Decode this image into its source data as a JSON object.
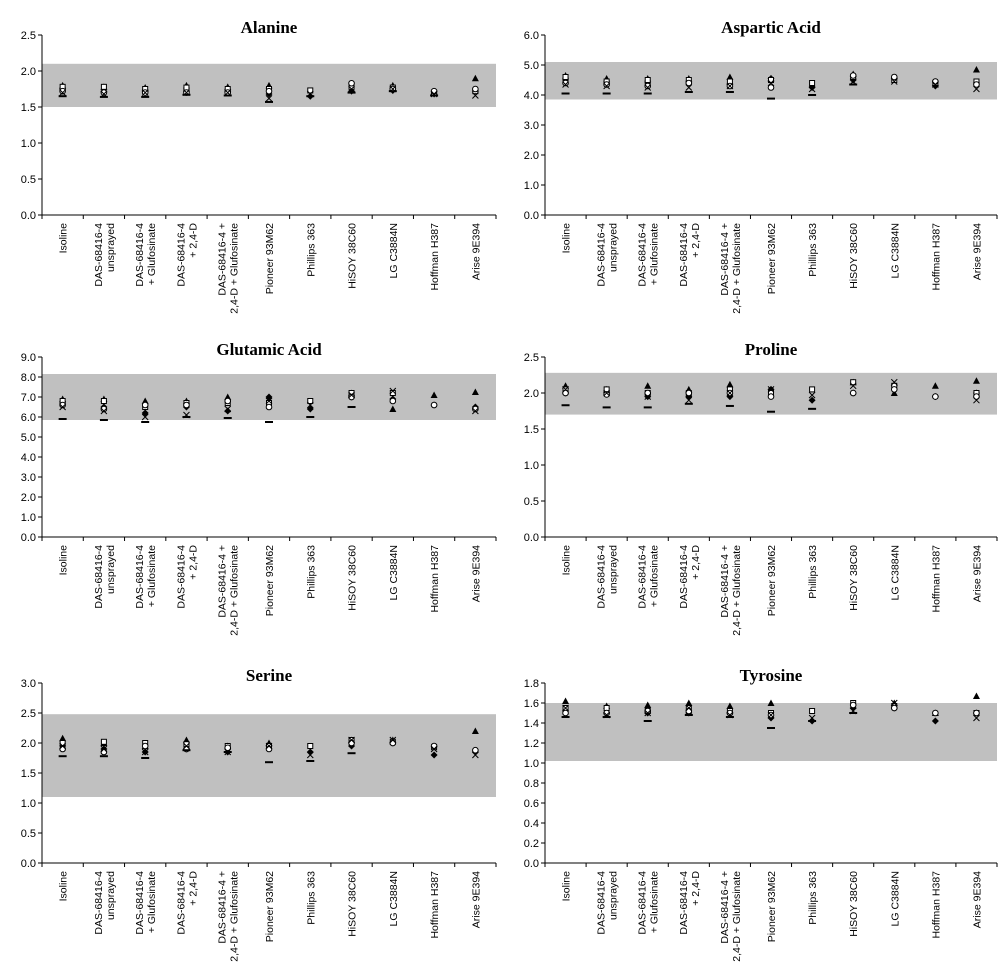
{
  "chart_data": [
    {
      "type": "scatter",
      "title": "Alanine",
      "categories": [
        [
          "Isoline"
        ],
        [
          "DAS-68416-4",
          "unsprayed"
        ],
        [
          "DAS-68416-4",
          "+ Glufosinate"
        ],
        [
          "DAS-68416-4",
          "+ 2,4-D"
        ],
        [
          "DAS-68416-4 +",
          "2,4-D + Glufosinate"
        ],
        [
          "Pioneer 93M62"
        ],
        [
          "Phillips 363"
        ],
        [
          "HiSOY 38C60"
        ],
        [
          "LG C3884N"
        ],
        [
          "Hoffman H387"
        ],
        [
          "Arise 9E394"
        ]
      ],
      "ylim": [
        0,
        2.5
      ],
      "yticks": [
        {
          "value": 0,
          "label": "0.0"
        },
        {
          "value": 0.5,
          "label": "0.5"
        },
        {
          "value": 1,
          "label": "1.0"
        },
        {
          "value": 1.5,
          "label": "1.5"
        },
        {
          "value": 2,
          "label": "2.0"
        },
        {
          "value": 2.5,
          "label": "2.5"
        }
      ],
      "band": [
        1.5,
        2.1
      ],
      "band_color": "#c0c0c0",
      "series": [
        {
          "marker": "diamond",
          "values": [
            1.75,
            1.72,
            1.72,
            1.72,
            1.72,
            1.68,
            1.65,
            1.72,
            1.73,
            1.68,
            1.72
          ]
        },
        {
          "marker": "triangle",
          "values": [
            1.8,
            1.78,
            1.77,
            1.8,
            1.78,
            1.8,
            null,
            null,
            1.8,
            null,
            1.9
          ]
        },
        {
          "marker": "square",
          "values": [
            1.78,
            1.78,
            1.75,
            1.77,
            1.75,
            1.75,
            1.73,
            1.78,
            1.77,
            1.7,
            1.72
          ]
        },
        {
          "marker": "circle",
          "values": [
            1.72,
            1.7,
            1.7,
            1.7,
            1.7,
            1.72,
            null,
            1.83,
            1.75,
            1.72,
            1.75
          ]
        },
        {
          "marker": "cross",
          "values": [
            1.7,
            1.68,
            1.7,
            1.7,
            1.7,
            1.62,
            1.68,
            1.75,
            1.75,
            1.68,
            1.66
          ]
        },
        {
          "marker": "dash",
          "values": [
            1.65,
            1.64,
            1.64,
            1.67,
            1.66,
            1.57,
            1.65,
            1.7,
            1.72,
            1.66,
            null
          ]
        }
      ]
    },
    {
      "type": "scatter",
      "title": "Aspartic Acid",
      "categories": [
        [
          "Isoline"
        ],
        [
          "DAS-68416-4",
          "unsprayed"
        ],
        [
          "DAS-68416-4",
          "+ Glufosinate"
        ],
        [
          "DAS-68416-4",
          "+ 2,4-D"
        ],
        [
          "DAS-68416-4 +",
          "2,4-D + Glufosinate"
        ],
        [
          "Pioneer 93M62"
        ],
        [
          "Phillips 363"
        ],
        [
          "HiSOY 38C60"
        ],
        [
          "LG C3884N"
        ],
        [
          "Hoffman H387"
        ],
        [
          "Arise 9E394"
        ]
      ],
      "ylim": [
        0,
        6
      ],
      "yticks": [
        {
          "value": 0,
          "label": "0.0"
        },
        {
          "value": 1,
          "label": "1.0"
        },
        {
          "value": 2,
          "label": "2.0"
        },
        {
          "value": 3,
          "label": "3.0"
        },
        {
          "value": 4,
          "label": "4.0"
        },
        {
          "value": 5,
          "label": "5.0"
        },
        {
          "value": 6,
          "label": "6.0"
        }
      ],
      "band": [
        3.85,
        5.1
      ],
      "band_color": "#c0c0c0",
      "series": [
        {
          "marker": "diamond",
          "values": [
            4.5,
            4.4,
            4.4,
            4.4,
            4.35,
            4.55,
            4.25,
            4.5,
            4.55,
            4.3,
            4.4
          ]
        },
        {
          "marker": "triangle",
          "values": [
            4.65,
            4.55,
            4.55,
            4.55,
            4.6,
            4.55,
            null,
            4.7,
            null,
            4.4,
            4.85
          ]
        },
        {
          "marker": "square",
          "values": [
            4.6,
            4.45,
            4.5,
            4.5,
            4.45,
            4.5,
            4.4,
            4.6,
            4.5,
            4.4,
            4.45
          ]
        },
        {
          "marker": "circle",
          "values": [
            4.4,
            4.35,
            4.3,
            4.4,
            4.3,
            4.25,
            null,
            4.65,
            4.6,
            4.45,
            4.35
          ]
        },
        {
          "marker": "cross",
          "values": [
            4.35,
            4.3,
            4.25,
            4.25,
            4.3,
            4.4,
            4.2,
            4.45,
            4.45,
            4.35,
            4.2
          ]
        },
        {
          "marker": "dash",
          "values": [
            4.05,
            4.05,
            4.05,
            4.1,
            4.1,
            3.88,
            4.0,
            4.35,
            null,
            null,
            null
          ]
        }
      ]
    },
    {
      "type": "scatter",
      "title": "Glutamic Acid",
      "categories": [
        [
          "Isoline"
        ],
        [
          "DAS-68416-4",
          "unsprayed"
        ],
        [
          "DAS-68416-4",
          "+ Glufosinate"
        ],
        [
          "DAS-68416-4",
          "+ 2,4-D"
        ],
        [
          "DAS-68416-4 +",
          "2,4-D + Glufosinate"
        ],
        [
          "Pioneer 93M62"
        ],
        [
          "Phillips 363"
        ],
        [
          "HiSOY 38C60"
        ],
        [
          "LG C3884N"
        ],
        [
          "Hoffman H387"
        ],
        [
          "Arise 9E394"
        ]
      ],
      "ylim": [
        0,
        9
      ],
      "yticks": [
        {
          "value": 0,
          "label": "0.0"
        },
        {
          "value": 1,
          "label": "1.0"
        },
        {
          "value": 2,
          "label": "2.0"
        },
        {
          "value": 3,
          "label": "3.0"
        },
        {
          "value": 4,
          "label": "4.0"
        },
        {
          "value": 5,
          "label": "5.0"
        },
        {
          "value": 6,
          "label": "6.0"
        },
        {
          "value": 7,
          "label": "7.0"
        },
        {
          "value": 8,
          "label": "8.0"
        },
        {
          "value": 9,
          "label": "9.0"
        }
      ],
      "band": [
        5.85,
        8.15
      ],
      "band_color": "#c0c0c0",
      "series": [
        {
          "marker": "diamond",
          "values": [
            6.7,
            6.5,
            6.2,
            6.5,
            6.3,
            7.0,
            6.4,
            7.0,
            6.9,
            6.6,
            6.5
          ]
        },
        {
          "marker": "triangle",
          "values": [
            6.9,
            6.9,
            6.8,
            6.8,
            7.0,
            null,
            null,
            7.2,
            6.4,
            7.1,
            7.25
          ]
        },
        {
          "marker": "square",
          "values": [
            6.8,
            6.8,
            6.5,
            6.7,
            6.7,
            6.7,
            6.8,
            7.2,
            7.2,
            null,
            null
          ]
        },
        {
          "marker": "circle",
          "values": [
            6.6,
            6.4,
            6.6,
            6.6,
            6.8,
            6.5,
            null,
            7.0,
            6.8,
            6.6,
            6.4
          ]
        },
        {
          "marker": "cross",
          "values": [
            6.5,
            6.3,
            6.0,
            6.1,
            6.4,
            6.8,
            6.6,
            7.1,
            7.3,
            null,
            6.3
          ]
        },
        {
          "marker": "dash",
          "values": [
            5.9,
            5.85,
            5.75,
            6.0,
            5.95,
            5.75,
            6.0,
            6.5,
            null,
            null,
            null
          ]
        }
      ]
    },
    {
      "type": "scatter",
      "title": "Proline",
      "categories": [
        [
          "Isoline"
        ],
        [
          "DAS-68416-4",
          "unsprayed"
        ],
        [
          "DAS-68416-4",
          "+ Glufosinate"
        ],
        [
          "DAS-68416-4",
          "+ 2,4-D"
        ],
        [
          "DAS-68416-4 +",
          "2,4-D + Glufosinate"
        ],
        [
          "Pioneer 93M62"
        ],
        [
          "Phillips 363"
        ],
        [
          "HiSOY 38C60"
        ],
        [
          "LG C3884N"
        ],
        [
          "Hoffman H387"
        ],
        [
          "Arise 9E394"
        ]
      ],
      "ylim": [
        0,
        2.5
      ],
      "yticks": [
        {
          "value": 0,
          "label": "0.0"
        },
        {
          "value": 0.5,
          "label": "0.5"
        },
        {
          "value": 1,
          "label": "1.0"
        },
        {
          "value": 1.5,
          "label": "1.5"
        },
        {
          "value": 2,
          "label": "2.0"
        },
        {
          "value": 2.5,
          "label": "2.5"
        }
      ],
      "band": [
        1.7,
        2.28
      ],
      "band_color": "#c0c0c0",
      "series": [
        {
          "marker": "diamond",
          "values": [
            2.0,
            2.0,
            1.95,
            1.95,
            1.95,
            2.05,
            1.9,
            2.0,
            2.1,
            1.95,
            2.0
          ]
        },
        {
          "marker": "triangle",
          "values": [
            2.1,
            2.05,
            2.1,
            2.05,
            2.12,
            null,
            null,
            2.15,
            2.0,
            2.1,
            2.17
          ]
        },
        {
          "marker": "square",
          "values": [
            2.05,
            2.05,
            2.0,
            2.0,
            2.05,
            2.0,
            2.05,
            2.15,
            2.1,
            null,
            2.0
          ]
        },
        {
          "marker": "circle",
          "values": [
            2.0,
            1.98,
            2.0,
            2.0,
            2.0,
            1.95,
            null,
            2.0,
            2.05,
            1.95,
            1.95
          ]
        },
        {
          "marker": "cross",
          "values": [
            2.05,
            2.0,
            1.95,
            1.9,
            2.0,
            2.05,
            1.97,
            2.1,
            2.15,
            null,
            1.9
          ]
        },
        {
          "marker": "dash",
          "values": [
            1.83,
            1.8,
            1.8,
            1.85,
            1.82,
            1.74,
            1.78,
            null,
            null,
            null,
            null
          ]
        }
      ]
    },
    {
      "type": "scatter",
      "title": "Serine",
      "categories": [
        [
          "Isoline"
        ],
        [
          "DAS-68416-4",
          "unsprayed"
        ],
        [
          "DAS-68416-4",
          "+ Glufosinate"
        ],
        [
          "DAS-68416-4",
          "+ 2,4-D"
        ],
        [
          "DAS-68416-4 +",
          "2,4-D + Glufosinate"
        ],
        [
          "Pioneer 93M62"
        ],
        [
          "Phillips 363"
        ],
        [
          "HiSOY 38C60"
        ],
        [
          "LG C3884N"
        ],
        [
          "Hoffman H387"
        ],
        [
          "Arise 9E394"
        ]
      ],
      "ylim": [
        0,
        3
      ],
      "yticks": [
        {
          "value": 0,
          "label": "0.0"
        },
        {
          "value": 0.5,
          "label": "0.5"
        },
        {
          "value": 1,
          "label": "1.0"
        },
        {
          "value": 1.5,
          "label": "1.5"
        },
        {
          "value": 2,
          "label": "2.0"
        },
        {
          "value": 2.5,
          "label": "2.5"
        },
        {
          "value": 3,
          "label": "3.0"
        }
      ],
      "band": [
        1.1,
        2.48
      ],
      "band_color": "#c0c0c0",
      "series": [
        {
          "marker": "diamond",
          "values": [
            1.95,
            1.9,
            1.85,
            1.9,
            1.85,
            1.95,
            1.85,
            1.95,
            2.0,
            1.8,
            1.85
          ]
        },
        {
          "marker": "triangle",
          "values": [
            2.08,
            2.0,
            1.95,
            2.05,
            1.95,
            2.0,
            null,
            2.05,
            2.05,
            null,
            2.2
          ]
        },
        {
          "marker": "square",
          "values": [
            2.0,
            2.02,
            2.0,
            1.98,
            1.95,
            1.95,
            1.95,
            2.05,
            2.02,
            1.93,
            null
          ]
        },
        {
          "marker": "circle",
          "values": [
            1.9,
            1.85,
            1.95,
            1.9,
            1.92,
            1.9,
            null,
            2.0,
            2.0,
            1.95,
            1.88
          ]
        },
        {
          "marker": "cross",
          "values": [
            1.95,
            1.9,
            1.85,
            1.95,
            1.85,
            1.95,
            1.8,
            2.05,
            2.05,
            1.9,
            1.8
          ]
        },
        {
          "marker": "dash",
          "values": [
            1.78,
            1.78,
            1.75,
            1.88,
            1.85,
            1.68,
            1.7,
            1.83,
            null,
            null,
            null
          ]
        }
      ]
    },
    {
      "type": "scatter",
      "title": "Tyrosine",
      "categories": [
        [
          "Isoline"
        ],
        [
          "DAS-68416-4",
          "unsprayed"
        ],
        [
          "DAS-68416-4",
          "+ Glufosinate"
        ],
        [
          "DAS-68416-4",
          "+ 2,4-D"
        ],
        [
          "DAS-68416-4 +",
          "2,4-D + Glufosinate"
        ],
        [
          "Pioneer 93M62"
        ],
        [
          "Phillips 363"
        ],
        [
          "HiSOY 38C60"
        ],
        [
          "LG C3884N"
        ],
        [
          "Hoffman H387"
        ],
        [
          "Arise 9E394"
        ]
      ],
      "ylim": [
        0,
        1.8
      ],
      "yticks": [
        {
          "value": 0,
          "label": "0.0"
        },
        {
          "value": 0.2,
          "label": "0.2"
        },
        {
          "value": 0.4,
          "label": "0.4"
        },
        {
          "value": 0.6,
          "label": "0.6"
        },
        {
          "value": 0.8,
          "label": "0.8"
        },
        {
          "value": 1,
          "label": "1.0"
        },
        {
          "value": 1.2,
          "label": "1.2"
        },
        {
          "value": 1.4,
          "label": "1.4"
        },
        {
          "value": 1.6,
          "label": "1.6"
        },
        {
          "value": 1.8,
          "label": "1.8"
        }
      ],
      "band": [
        1.02,
        1.6
      ],
      "band_color": "#c0c0c0",
      "series": [
        {
          "marker": "diamond",
          "values": [
            1.52,
            1.5,
            1.5,
            1.5,
            1.5,
            1.45,
            1.42,
            1.55,
            1.55,
            1.42,
            1.5
          ]
        },
        {
          "marker": "triangle",
          "values": [
            1.62,
            1.57,
            1.58,
            1.6,
            1.57,
            1.6,
            null,
            null,
            1.6,
            1.5,
            1.67
          ]
        },
        {
          "marker": "square",
          "values": [
            1.55,
            1.55,
            1.52,
            1.55,
            1.52,
            1.5,
            1.52,
            1.6,
            1.57,
            null,
            1.5
          ]
        },
        {
          "marker": "circle",
          "values": [
            1.5,
            1.5,
            1.52,
            1.52,
            1.5,
            1.48,
            null,
            1.58,
            1.55,
            1.5,
            1.5
          ]
        },
        {
          "marker": "cross",
          "values": [
            1.55,
            1.48,
            1.5,
            1.55,
            1.48,
            1.48,
            1.45,
            1.52,
            1.6,
            null,
            1.45
          ]
        },
        {
          "marker": "dash",
          "values": [
            1.46,
            1.46,
            1.42,
            1.48,
            1.46,
            1.35,
            1.42,
            1.5,
            null,
            null,
            null
          ]
        }
      ]
    }
  ]
}
